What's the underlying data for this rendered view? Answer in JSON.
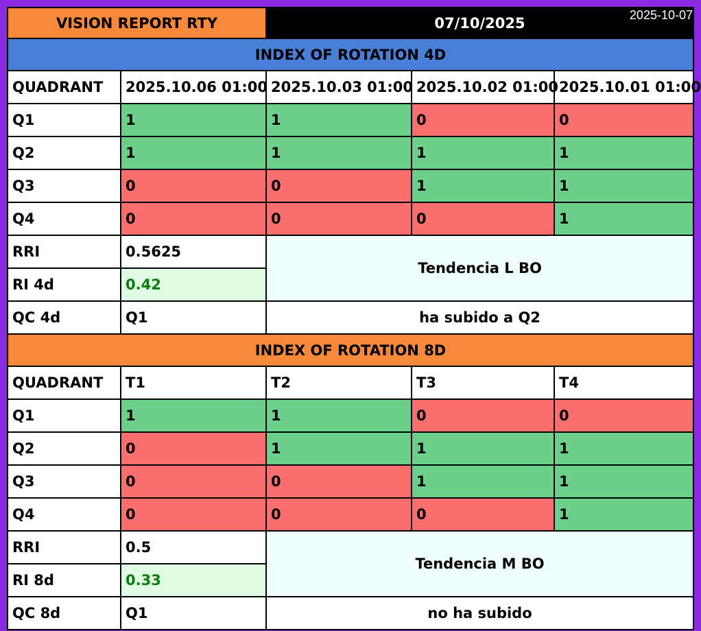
{
  "header": {
    "title": "VISION REPORT RTY",
    "date": "07/10/2025",
    "stamp": "2025-10-07"
  },
  "colors": {
    "border": "#8a2be2",
    "orange": "#f9893a",
    "blue": "#4a7fd8",
    "green": "#6cd08b",
    "red": "#fb6e6e",
    "ri_text": "#0b7d0b"
  },
  "section_4d": {
    "title": "INDEX OF ROTATION 4D",
    "quadrant_label": "QUADRANT",
    "columns": [
      "2025.10.06 01:00",
      "2025.10.03 01:00",
      "2025.10.02 01:00",
      "2025.10.01 01:00"
    ],
    "rows": [
      {
        "label": "Q1",
        "values": [
          "1",
          "1",
          "0",
          "0"
        ]
      },
      {
        "label": "Q2",
        "values": [
          "1",
          "1",
          "1",
          "1"
        ]
      },
      {
        "label": "Q3",
        "values": [
          "0",
          "0",
          "1",
          "1"
        ]
      },
      {
        "label": "Q4",
        "values": [
          "0",
          "0",
          "0",
          "1"
        ]
      }
    ],
    "rri_label": "RRI",
    "rri_value": "0.5625",
    "ri_label": "RI 4d",
    "ri_value": "0.42",
    "trend": "Tendencia L BO",
    "qc_label": "QC 4d",
    "qc_value": "Q1",
    "qc_note": "ha subido a Q2"
  },
  "section_8d": {
    "title": "INDEX OF ROTATION 8D",
    "quadrant_label": "QUADRANT",
    "columns": [
      "T1",
      "T2",
      "T3",
      "T4"
    ],
    "rows": [
      {
        "label": "Q1",
        "values": [
          "1",
          "1",
          "0",
          "0"
        ]
      },
      {
        "label": "Q2",
        "values": [
          "0",
          "1",
          "1",
          "1"
        ]
      },
      {
        "label": "Q3",
        "values": [
          "0",
          "0",
          "1",
          "1"
        ]
      },
      {
        "label": "Q4",
        "values": [
          "0",
          "0",
          "0",
          "1"
        ]
      }
    ],
    "rri_label": "RRI",
    "rri_value": "0.5",
    "ri_label": "RI 8d",
    "ri_value": "0.33",
    "trend": "Tendencia M BO",
    "qc_label": "QC 8d",
    "qc_value": "Q1",
    "qc_note": "no ha subido"
  }
}
